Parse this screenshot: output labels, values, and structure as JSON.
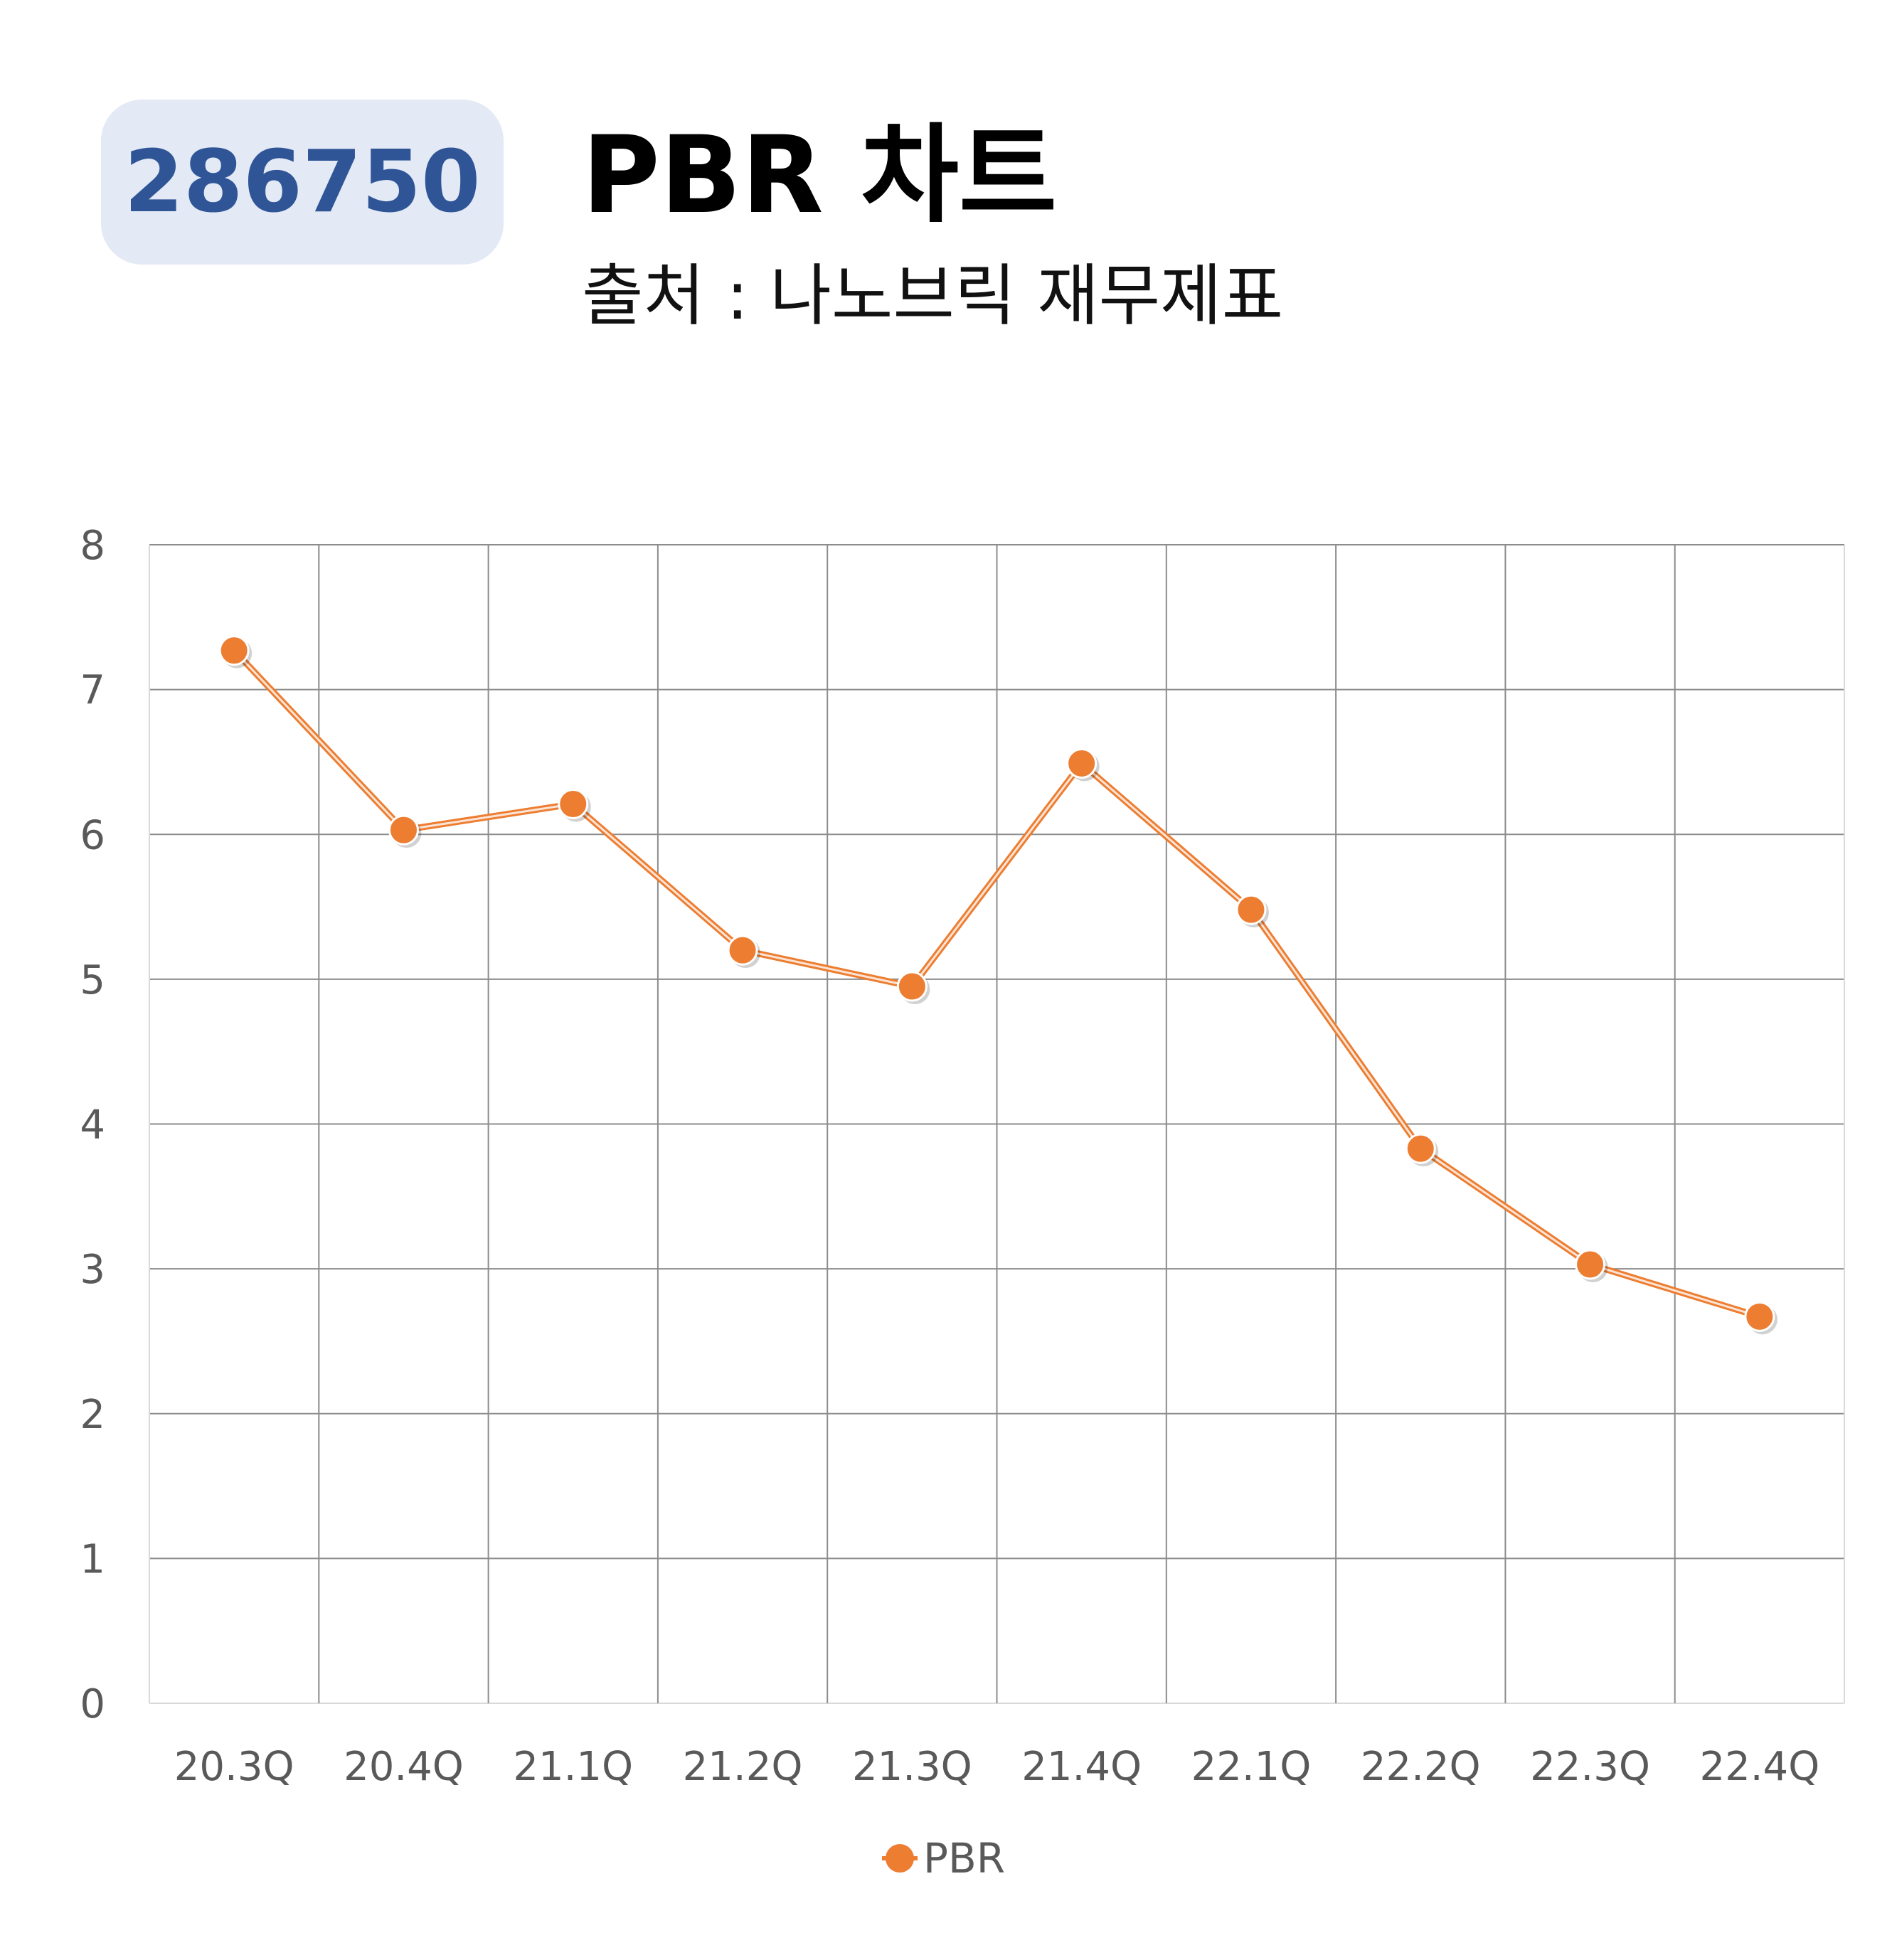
{
  "header": {
    "code": "286750",
    "title": "PBR 차트",
    "source": "출처 : 나노브릭 재무제표"
  },
  "chart_data": {
    "type": "line",
    "categories": [
      "20.3Q",
      "20.4Q",
      "21.1Q",
      "21.2Q",
      "21.3Q",
      "21.4Q",
      "22.1Q",
      "22.2Q",
      "22.3Q",
      "22.4Q"
    ],
    "series": [
      {
        "name": "PBR",
        "values": [
          7.27,
          6.03,
          6.21,
          5.2,
          4.95,
          6.49,
          5.48,
          3.83,
          3.03,
          2.67
        ],
        "color": "#ed7d31"
      }
    ],
    "ylim": [
      0,
      8
    ],
    "yticks": [
      0,
      1,
      2,
      3,
      4,
      5,
      6,
      7,
      8
    ],
    "grid": true,
    "legend_position": "bottom",
    "xlabel": "",
    "ylabel": ""
  }
}
